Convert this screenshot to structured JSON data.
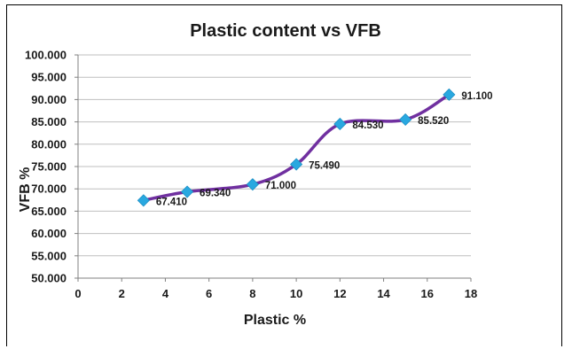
{
  "chart_data": {
    "type": "scatter",
    "title": "Plastic content vs VFB",
    "xlabel": "Plastic  %",
    "ylabel": "VFB %",
    "xlim": [
      0,
      18
    ],
    "ylim": [
      50,
      100
    ],
    "x_ticks": [
      0,
      2,
      4,
      6,
      8,
      10,
      12,
      14,
      16,
      18
    ],
    "y_ticks": [
      50,
      55,
      60,
      65,
      70,
      75,
      80,
      85,
      90,
      95,
      100
    ],
    "y_tick_labels": [
      "50.000",
      "55.000",
      "60.000",
      "65.000",
      "70.000",
      "75.000",
      "80.000",
      "85.000",
      "90.000",
      "95.000",
      "100.000"
    ],
    "grid": true,
    "legend": "none",
    "marker": "diamond",
    "line": "smooth",
    "colors": {
      "marker": "#29a8e0",
      "line": "#7030a0",
      "grid": "#bfbfbf"
    },
    "series": [
      {
        "x": [
          3,
          5,
          8,
          10,
          12,
          15,
          17
        ],
        "y": [
          67.41,
          69.34,
          71.0,
          75.49,
          84.53,
          85.52,
          91.1
        ],
        "labels": [
          "67.410",
          "69.340",
          "71.000",
          "75.490",
          "84.530",
          "85.520",
          "91.100"
        ]
      }
    ]
  }
}
